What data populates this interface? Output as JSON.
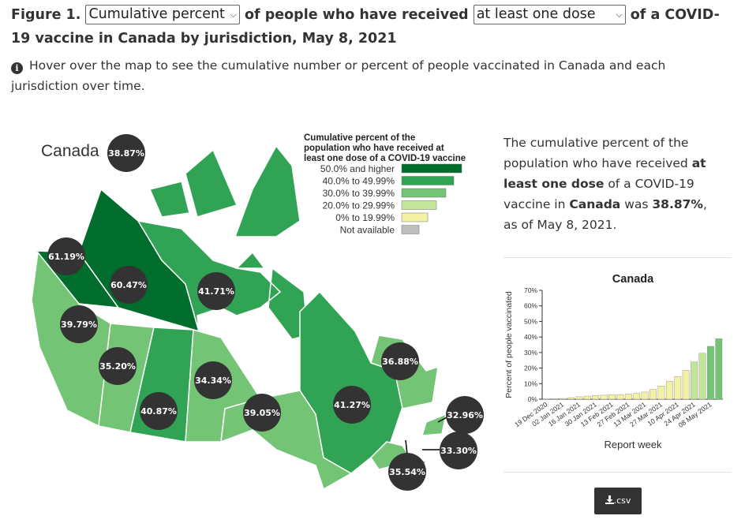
{
  "header": {
    "figure_label": "Figure 1.",
    "measure_select": "Cumulative percent",
    "text_1": "of people who have received",
    "dose_select": "at least one dose",
    "text_2": "of a COVID-19 vaccine in Canada by jurisdiction, May 8, 2021"
  },
  "info": {
    "icon": "info-circle-icon",
    "text": "Hover over the map to see the cumulative number or percent of people vaccinated in Canada and each jurisdiction over time."
  },
  "map": {
    "canada_label": "Canada",
    "canada_value": "38.87%",
    "legend": {
      "title": [
        "Cumulative percent of the",
        "population who have received at",
        "least one dose of a COVID-19 vaccine"
      ],
      "items": [
        {
          "label": "50.0% and higher",
          "color": "#006d2c"
        },
        {
          "label": "40.0% to 49.99%",
          "color": "#31a354"
        },
        {
          "label": "30.0% to 39.99%",
          "color": "#74c476"
        },
        {
          "label": "20.0% to 29.99%",
          "color": "#c2e699"
        },
        {
          "label": "0% to 19.99%",
          "color": "#f3f1a3"
        },
        {
          "label": "Not available",
          "color": "#bdbdbd"
        }
      ]
    },
    "jurisdictions": [
      {
        "value": "61.19%"
      },
      {
        "value": "60.47%"
      },
      {
        "value": "41.71%"
      },
      {
        "value": "39.79%"
      },
      {
        "value": "35.20%"
      },
      {
        "value": "40.87%"
      },
      {
        "value": "34.34%"
      },
      {
        "value": "39.05%"
      },
      {
        "value": "41.27%"
      },
      {
        "value": "36.88%"
      },
      {
        "value": "32.96%"
      },
      {
        "value": "33.30%"
      },
      {
        "value": "35.54%"
      }
    ]
  },
  "summary": {
    "t1": "The cumulative percent of the population who have received ",
    "b1": "at least one dose",
    "t2": " of a COVID-19 vaccine in ",
    "b2": "Canada",
    "t3": " was ",
    "b3": "38.87%",
    "t4": ", as of May 8, 2021."
  },
  "chart_data": {
    "type": "bar",
    "title": "Canada",
    "xlabel": "Report week",
    "ylabel": "Percent of people vaccinated",
    "ylim": [
      0,
      70
    ],
    "yticks": [
      "0%",
      "10%",
      "20%",
      "30%",
      "40%",
      "50%",
      "60%",
      "70%"
    ],
    "tick_labels": [
      "19 Dec 2020",
      "02 Jan 2021",
      "16 Jan 2021",
      "30 Jan 2021",
      "13 Feb 2021",
      "27 Feb 2021",
      "13 Mar 2021",
      "27 Mar 2021",
      "10 Apr 2021",
      "24 Apr 2021",
      "08 May 2021"
    ],
    "values": [
      0.1,
      0.3,
      0.5,
      1.0,
      1.6,
      2.0,
      2.4,
      2.6,
      2.8,
      3.0,
      3.3,
      3.8,
      4.6,
      6.3,
      8.5,
      11.5,
      14.5,
      18.5,
      24.0,
      29.5,
      34.0,
      38.87
    ]
  },
  "download": {
    "label": ".csv",
    "icon": "download-icon"
  }
}
